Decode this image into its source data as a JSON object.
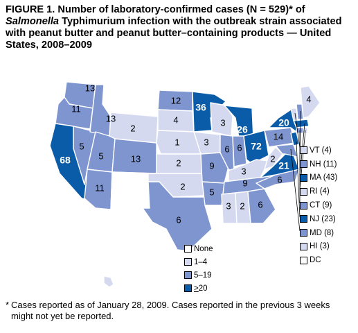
{
  "figure": {
    "title_part1": "FIGURE 1. Number of laboratory-confirmed cases (N = 529)* of ",
    "title_italic": "Salmonella",
    "title_part2": " Typhimurium infection with the outbreak strain associated with peanut butter and peanut butter–containing products — United States, 2008–2009"
  },
  "colors": {
    "none": "#ffffff",
    "c1_4": "#d4d9f0",
    "c5_19": "#7f95cf",
    "c20plus": "#0b5ca8",
    "border": "#000000"
  },
  "legend": {
    "items": [
      {
        "label_pre": "",
        "label_u": "",
        "label": "None",
        "class": "none"
      },
      {
        "label_pre": "",
        "label_u": "",
        "label": "1–4",
        "class": "c1_4"
      },
      {
        "label_pre": "",
        "label_u": "",
        "label": "5–19",
        "class": "c5_19"
      },
      {
        "label_pre": "",
        "label_u": ">",
        "label": "20",
        "class": "c20plus"
      }
    ]
  },
  "state_counts": [
    {
      "state": "WA",
      "value": "13"
    },
    {
      "state": "OR",
      "value": "11"
    },
    {
      "state": "ID",
      "value": "13"
    },
    {
      "state": "CA",
      "value": "68"
    },
    {
      "state": "NV",
      "value": "5"
    },
    {
      "state": "UT",
      "value": "5"
    },
    {
      "state": "AZ",
      "value": "11"
    },
    {
      "state": "WY",
      "value": "2"
    },
    {
      "state": "CO",
      "value": "13"
    },
    {
      "state": "ND",
      "value": "12"
    },
    {
      "state": "SD",
      "value": "4"
    },
    {
      "state": "NE",
      "value": "1"
    },
    {
      "state": "KS",
      "value": "2"
    },
    {
      "state": "OK",
      "value": "2"
    },
    {
      "state": "TX",
      "value": "6"
    },
    {
      "state": "MN",
      "value": "36"
    },
    {
      "state": "IA",
      "value": "3"
    },
    {
      "state": "MO",
      "value": "9"
    },
    {
      "state": "AR",
      "value": "5"
    },
    {
      "state": "WI",
      "value": "3"
    },
    {
      "state": "IL",
      "value": "6"
    },
    {
      "state": "MI",
      "value": "26"
    },
    {
      "state": "IN",
      "value": "6"
    },
    {
      "state": "OH",
      "value": "72"
    },
    {
      "state": "KY",
      "value": "3"
    },
    {
      "state": "TN",
      "value": "9"
    },
    {
      "state": "MS",
      "value": "3"
    },
    {
      "state": "AL",
      "value": "2"
    },
    {
      "state": "GA",
      "value": "6"
    },
    {
      "state": "NC",
      "value": "6"
    },
    {
      "state": "VA",
      "value": "21"
    },
    {
      "state": "WV",
      "value": "2"
    },
    {
      "state": "PA",
      "value": "14"
    },
    {
      "state": "NY",
      "value": "20"
    },
    {
      "state": "ME",
      "value": "4"
    }
  ],
  "northeast_legend": [
    {
      "label": "VT (4)",
      "class": "c1_4"
    },
    {
      "label": "NH (11)",
      "class": "c5_19"
    },
    {
      "label": "MA (43)",
      "class": "c20plus"
    },
    {
      "label": "RI (4)",
      "class": "c1_4"
    },
    {
      "label": "CT (9)",
      "class": "c5_19"
    },
    {
      "label": "NJ (23)",
      "class": "c20plus"
    },
    {
      "label": "MD (8)",
      "class": "c5_19"
    },
    {
      "label": "HI (3)",
      "class": "c1_4"
    },
    {
      "label": "DC",
      "class": "none"
    }
  ],
  "footnote": {
    "symbol": "*",
    "text": "Cases reported as of January 28, 2009. Cases reported in the previous 3 weeks might not yet be reported."
  }
}
